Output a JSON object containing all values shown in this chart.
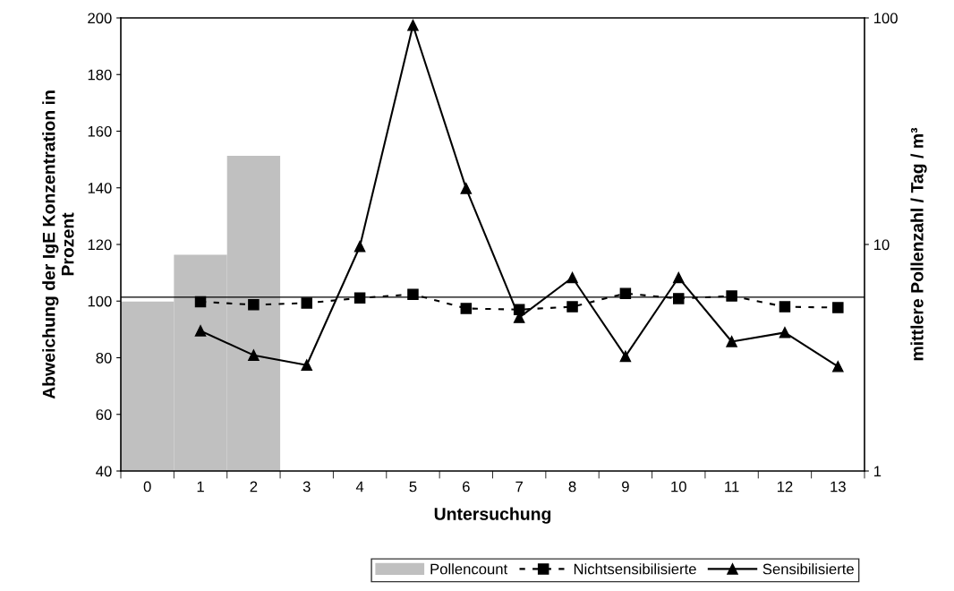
{
  "chart_data": {
    "type": "line",
    "xlabel": "Untersuchung",
    "ylabel": "Abweichung der IgE Konzentration in\nProzent",
    "y2label": "mittlere Pollenzahl / Tag / m³",
    "categories": [
      "0",
      "1",
      "2",
      "3",
      "4",
      "5",
      "6",
      "7",
      "8",
      "9",
      "10",
      "11",
      "12",
      "13"
    ],
    "series": [
      {
        "name": "Pollencount",
        "type": "bar",
        "axis": "y2",
        "color": "#c0c0c0",
        "values": [
          5.6,
          9.0,
          24.6,
          null,
          null,
          null,
          null,
          null,
          null,
          null,
          null,
          null,
          null,
          null
        ]
      },
      {
        "name": "Nichtsensibilisierte",
        "color": "#000000",
        "marker": "square",
        "line_style": "dashed",
        "values": [
          null,
          99.8,
          98.7,
          99.3,
          101.1,
          102.4,
          97.4,
          97.0,
          98.0,
          102.7,
          100.9,
          101.8,
          98.0,
          97.7
        ]
      },
      {
        "name": "Sensibilisierte",
        "color": "#000000",
        "marker": "triangle",
        "line_style": "solid",
        "values": [
          null,
          89.5,
          80.9,
          77.4,
          119.3,
          197.4,
          139.8,
          94.2,
          108.3,
          80.5,
          108.3,
          85.7,
          88.9,
          76.9
        ]
      }
    ],
    "ylim": [
      40,
      200
    ],
    "yticks": [
      40,
      60,
      80,
      100,
      120,
      140,
      160,
      180,
      200
    ],
    "y2lim": [
      1,
      100
    ],
    "y2ticks": [
      1,
      10,
      100
    ],
    "log": "y2",
    "ref_lines": [
      {
        "axis": "y",
        "value": 101.4,
        "color": "#000000"
      }
    ],
    "legend": "bottom right",
    "grid": false
  }
}
